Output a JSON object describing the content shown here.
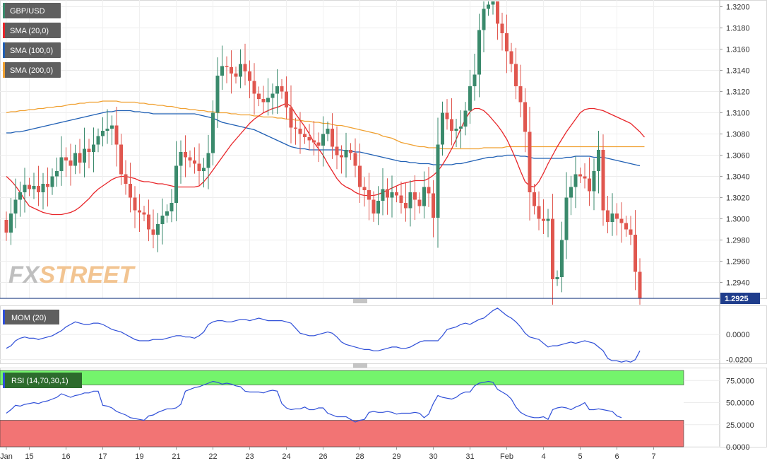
{
  "colors": {
    "up": "#3a8a6c",
    "down": "#e0574f",
    "sma20": "#e8262a",
    "sma100": "#1f5fb4",
    "sma200": "#f0a030",
    "mom": "#2f4fd8",
    "rsi": "#2f4fd8",
    "rsi_ob": "#74f46c",
    "rsi_os": "#f27474",
    "last_line": "#1a3c8c"
  },
  "watermark": {
    "fx": "FX",
    "street": "STREET"
  },
  "legend": [
    {
      "label": "GBP/USD",
      "swatch": "#3a8a6c"
    },
    {
      "label": "SMA (20,0)",
      "swatch": "#e8262a"
    },
    {
      "label": "SMA (100,0)",
      "swatch": "#1f5fb4"
    },
    {
      "label": "SMA (200,0)",
      "swatch": "#f0a030"
    }
  ],
  "mom_label": "MOM (20)",
  "rsi_label": "RSI (14,70,30,1)",
  "last_price": "1.2925",
  "chart_data": [
    {
      "type": "candlestick",
      "series_name": "GBP/USD",
      "ylim": [
        1.2925,
        1.3205
      ],
      "yticks": [
        "1.2940",
        "1.2960",
        "1.2980",
        "1.3000",
        "1.3020",
        "1.3040",
        "1.3060",
        "1.3080",
        "1.3100",
        "1.3120",
        "1.3140",
        "1.3160",
        "1.3180",
        "1.3200"
      ],
      "xticks": [
        {
          "label": "Jan",
          "idx": 0
        },
        {
          "label": "15",
          "idx": 5
        },
        {
          "label": "16",
          "idx": 13
        },
        {
          "label": "17",
          "idx": 21
        },
        {
          "label": "19",
          "idx": 29
        },
        {
          "label": "21",
          "idx": 37
        },
        {
          "label": "22",
          "idx": 45
        },
        {
          "label": "23",
          "idx": 53
        },
        {
          "label": "24",
          "idx": 61
        },
        {
          "label": "26",
          "idx": 69
        },
        {
          "label": "28",
          "idx": 77
        },
        {
          "label": "29",
          "idx": 85
        },
        {
          "label": "30",
          "idx": 93
        },
        {
          "label": "31",
          "idx": 101
        },
        {
          "label": "Feb",
          "idx": 109
        },
        {
          "label": "4",
          "idx": 117
        },
        {
          "label": "5",
          "idx": 125
        },
        {
          "label": "6",
          "idx": 133
        },
        {
          "label": "7",
          "idx": 141
        }
      ],
      "closes": [
        1.2987,
        1.3005,
        1.3018,
        1.3025,
        1.3032,
        1.3028,
        1.3031,
        1.3025,
        1.3033,
        1.303,
        1.304,
        1.3045,
        1.3058,
        1.3055,
        1.305,
        1.3062,
        1.3053,
        1.3066,
        1.3063,
        1.307,
        1.3078,
        1.3083,
        1.3085,
        1.3088,
        1.307,
        1.3042,
        1.3033,
        1.302,
        1.3008,
        1.3006,
        1.3004,
        1.299,
        1.2985,
        1.2995,
        1.3003,
        1.3007,
        1.3015,
        1.305,
        1.3063,
        1.3058,
        1.3055,
        1.3052,
        1.3045,
        1.3048,
        1.3062,
        1.31,
        1.3135,
        1.3144,
        1.3143,
        1.3137,
        1.3134,
        1.3146,
        1.3139,
        1.313,
        1.3118,
        1.3113,
        1.311,
        1.3114,
        1.3118,
        1.3125,
        1.312,
        1.3105,
        1.3086,
        1.3085,
        1.308,
        1.3077,
        1.3074,
        1.3072,
        1.3069,
        1.308,
        1.3085,
        1.3068,
        1.306,
        1.3058,
        1.3065,
        1.3062,
        1.305,
        1.303,
        1.3027,
        1.3018,
        1.3005,
        1.3017,
        1.3028,
        1.302,
        1.3025,
        1.3022,
        1.3015,
        1.301,
        1.3025,
        1.3018,
        1.3012,
        1.303,
        1.3024,
        1.3001,
        1.307,
        1.31,
        1.3094,
        1.3083,
        1.3085,
        1.3087,
        1.3102,
        1.3125,
        1.3136,
        1.3178,
        1.3198,
        1.3202,
        1.3205,
        1.3184,
        1.3175,
        1.3158,
        1.3146,
        1.3125,
        1.311,
        1.3082,
        1.3025,
        1.3012,
        1.3,
        1.2998,
        1.3,
        1.2943,
        1.2945,
        1.298,
        1.302,
        1.303,
        1.3042,
        1.304,
        1.3038,
        1.3026,
        1.3045,
        1.3065,
        1.3008,
        1.2997,
        1.3005,
        1.3,
        1.2996,
        1.299,
        1.2985,
        1.295,
        1.2925
      ],
      "sma20": [
        1.304,
        1.3036,
        1.3031,
        1.3025,
        1.3018,
        1.3012,
        1.301,
        1.3008,
        1.3006,
        1.3005,
        1.3004,
        1.3004,
        1.3004,
        1.3005,
        1.3006,
        1.3008,
        1.3011,
        1.3015,
        1.3019,
        1.3024,
        1.3028,
        1.3031,
        1.3034,
        1.3037,
        1.3039,
        1.304,
        1.304,
        1.3039,
        1.3038,
        1.3036,
        1.3035,
        1.3035,
        1.3034,
        1.3033,
        1.3033,
        1.3032,
        1.3031,
        1.303,
        1.303,
        1.303,
        1.303,
        1.303,
        1.3031,
        1.3035,
        1.304,
        1.3046,
        1.3052,
        1.3058,
        1.3064,
        1.307,
        1.3075,
        1.308,
        1.3085,
        1.309,
        1.3094,
        1.3097,
        1.31,
        1.3102,
        1.3104,
        1.3105,
        1.3107,
        1.3109,
        1.3106,
        1.3099,
        1.3093,
        1.3087,
        1.308,
        1.3072,
        1.3066,
        1.306,
        1.3052,
        1.3045,
        1.3038,
        1.3033,
        1.303,
        1.3028,
        1.3025,
        1.3023,
        1.3022,
        1.3022,
        1.3022,
        1.3023,
        1.3025,
        1.3027,
        1.3029,
        1.3031,
        1.3033,
        1.3034,
        1.3035,
        1.3036,
        1.3036,
        1.3036,
        1.3038,
        1.3041,
        1.3045,
        1.3051,
        1.3058,
        1.3066,
        1.3075,
        1.3085,
        1.3094,
        1.3101,
        1.3104,
        1.3104,
        1.3102,
        1.3098,
        1.3093,
        1.3088,
        1.3082,
        1.3075,
        1.3066,
        1.3056,
        1.3045,
        1.3035,
        1.3031,
        1.303,
        1.3035,
        1.3043,
        1.3052,
        1.306,
        1.3068,
        1.3075,
        1.3082,
        1.3088,
        1.3094,
        1.31,
        1.3103,
        1.3104,
        1.3104,
        1.3103,
        1.3102,
        1.31,
        1.3098,
        1.3096,
        1.3094,
        1.3092,
        1.309,
        1.3086,
        1.3082,
        1.3077
      ],
      "sma100": [
        1.3081,
        1.3081,
        1.3082,
        1.3082,
        1.3083,
        1.3084,
        1.3085,
        1.3086,
        1.3087,
        1.3088,
        1.3089,
        1.309,
        1.3091,
        1.3092,
        1.3093,
        1.3094,
        1.3095,
        1.3096,
        1.3097,
        1.3098,
        1.3099,
        1.31,
        1.3101,
        1.3101,
        1.3102,
        1.3102,
        1.3102,
        1.3102,
        1.3101,
        1.3101,
        1.31,
        1.31,
        1.3099,
        1.3099,
        1.3099,
        1.3099,
        1.3099,
        1.3099,
        1.3099,
        1.3099,
        1.3099,
        1.3099,
        1.3098,
        1.3097,
        1.3096,
        1.3095,
        1.3093,
        1.3091,
        1.309,
        1.3089,
        1.3088,
        1.3087,
        1.3086,
        1.3085,
        1.3084,
        1.3082,
        1.308,
        1.3078,
        1.3076,
        1.3074,
        1.3072,
        1.307,
        1.3068,
        1.3067,
        1.3066,
        1.3066,
        1.3065,
        1.3065,
        1.3065,
        1.3065,
        1.3065,
        1.3065,
        1.3065,
        1.3065,
        1.3064,
        1.3064,
        1.3063,
        1.3063,
        1.3062,
        1.3061,
        1.306,
        1.3059,
        1.3058,
        1.3057,
        1.3056,
        1.3055,
        1.3054,
        1.3054,
        1.3053,
        1.3053,
        1.3052,
        1.3052,
        1.3052,
        1.3051,
        1.3051,
        1.3051,
        1.3051,
        1.3051,
        1.3052,
        1.3052,
        1.3053,
        1.3054,
        1.3055,
        1.3056,
        1.3057,
        1.3058,
        1.3058,
        1.3059,
        1.3059,
        1.306,
        1.306,
        1.306,
        1.3059,
        1.3059,
        1.3058,
        1.3057,
        1.3057,
        1.3057,
        1.3057,
        1.3057,
        1.3057,
        1.3057,
        1.3058,
        1.3058,
        1.3059,
        1.3059,
        1.3059,
        1.3059,
        1.3058,
        1.3058,
        1.3058,
        1.3057,
        1.3056,
        1.3055,
        1.3054,
        1.3053,
        1.3052,
        1.3051,
        1.305
      ],
      "sma200": [
        1.31,
        1.3101,
        1.3101,
        1.3102,
        1.3102,
        1.3103,
        1.3103,
        1.3104,
        1.3104,
        1.3105,
        1.3105,
        1.3106,
        1.3106,
        1.3107,
        1.3108,
        1.3108,
        1.3109,
        1.3109,
        1.311,
        1.311,
        1.311,
        1.3111,
        1.3111,
        1.3111,
        1.3111,
        1.311,
        1.311,
        1.311,
        1.311,
        1.3109,
        1.3109,
        1.3108,
        1.3108,
        1.3107,
        1.3107,
        1.3106,
        1.3106,
        1.3105,
        1.3104,
        1.3104,
        1.3103,
        1.3103,
        1.3102,
        1.3102,
        1.3101,
        1.3101,
        1.31,
        1.31,
        1.31,
        1.3099,
        1.3099,
        1.3098,
        1.3098,
        1.3098,
        1.3097,
        1.3097,
        1.3096,
        1.3096,
        1.3096,
        1.3095,
        1.3095,
        1.3094,
        1.3094,
        1.3093,
        1.3093,
        1.3092,
        1.3092,
        1.3091,
        1.3091,
        1.309,
        1.309,
        1.3089,
        1.3088,
        1.3088,
        1.3087,
        1.3086,
        1.3085,
        1.3084,
        1.3083,
        1.3082,
        1.3081,
        1.308,
        1.3078,
        1.3077,
        1.3076,
        1.3074,
        1.3072,
        1.3071,
        1.307,
        1.3069,
        1.3068,
        1.3068,
        1.3067,
        1.3067,
        1.3067,
        1.3066,
        1.3066,
        1.3066,
        1.3066,
        1.3066,
        1.3066,
        1.3066,
        1.3066,
        1.3066,
        1.3067,
        1.3067,
        1.3067,
        1.3067,
        1.3067,
        1.3068,
        1.3068,
        1.3068,
        1.3068,
        1.3068,
        1.3068,
        1.3068,
        1.3068,
        1.3068,
        1.3068,
        1.3068,
        1.3068,
        1.3068,
        1.3068,
        1.3068,
        1.3068,
        1.3068,
        1.3068,
        1.3068,
        1.3068,
        1.3068,
        1.3068,
        1.3068,
        1.3068,
        1.3068,
        1.3068,
        1.3068,
        1.3068,
        1.3068,
        1.3068,
        1.3068
      ],
      "last_price": 1.2925
    },
    {
      "type": "line",
      "series_name": "MOM (20)",
      "ylim": [
        -0.023,
        0.022
      ],
      "yticks": [
        "0.0000",
        "-0.0200"
      ],
      "values": [
        -0.011,
        -0.009,
        -0.005,
        -0.003,
        -0.002,
        -0.003,
        -0.003,
        -0.004,
        -0.003,
        -0.002,
        -0.001,
        0.001,
        0.003,
        0.006,
        0.008,
        0.01,
        0.009,
        0.008,
        0.008,
        0.009,
        0.009,
        0.008,
        0.006,
        0.004,
        0.003,
        0.002,
        0.0,
        -0.002,
        -0.004,
        -0.005,
        -0.005,
        -0.005,
        -0.004,
        -0.004,
        -0.004,
        -0.003,
        -0.002,
        -0.001,
        -0.001,
        -0.002,
        -0.002,
        -0.003,
        -0.001,
        0.002,
        0.008,
        0.01,
        0.011,
        0.011,
        0.01,
        0.01,
        0.011,
        0.012,
        0.012,
        0.011,
        0.012,
        0.013,
        0.012,
        0.011,
        0.011,
        0.011,
        0.011,
        0.01,
        0.009,
        0.005,
        0.001,
        0.0,
        -0.001,
        -0.001,
        0.0,
        0.001,
        0.002,
        0.001,
        -0.002,
        -0.006,
        -0.008,
        -0.009,
        -0.01,
        -0.011,
        -0.012,
        -0.012,
        -0.013,
        -0.013,
        -0.012,
        -0.011,
        -0.01,
        -0.01,
        -0.011,
        -0.011,
        -0.01,
        -0.008,
        -0.006,
        -0.005,
        -0.005,
        -0.005,
        -0.005,
        -0.001,
        0.004,
        0.005,
        0.006,
        0.008,
        0.009,
        0.008,
        0.01,
        0.012,
        0.013,
        0.016,
        0.019,
        0.021,
        0.018,
        0.015,
        0.013,
        0.01,
        0.006,
        0.001,
        -0.002,
        -0.003,
        -0.004,
        -0.007,
        -0.01,
        -0.009,
        -0.009,
        -0.008,
        -0.007,
        -0.006,
        -0.007,
        -0.006,
        -0.005,
        -0.006,
        -0.007,
        -0.01,
        -0.013,
        -0.019,
        -0.021,
        -0.021,
        -0.022,
        -0.021,
        -0.022,
        -0.02,
        -0.013
      ]
    },
    {
      "type": "line",
      "series_name": "RSI (14,70,30,1)",
      "ylim": [
        0,
        88
      ],
      "yticks": [
        "0.0000",
        "25.0000",
        "50.0000",
        "75.0000"
      ],
      "overbought": 70,
      "oversold": 30,
      "values": [
        38,
        42,
        47,
        46,
        48,
        49,
        50,
        49,
        51,
        52,
        54,
        56,
        60,
        58,
        56,
        58,
        59,
        61,
        61,
        63,
        63,
        47,
        46,
        44,
        40,
        38,
        36,
        33,
        32,
        31,
        30,
        35,
        36,
        39,
        41,
        43,
        43,
        44,
        48,
        63,
        65,
        67,
        68,
        70,
        72,
        74,
        73,
        71,
        72,
        71,
        69,
        68,
        63,
        62,
        62,
        62,
        61,
        63,
        64,
        63,
        49,
        44,
        42,
        43,
        43,
        45,
        42,
        42,
        44,
        44,
        38,
        36,
        34,
        34,
        34,
        31,
        28,
        30,
        31,
        39,
        40,
        39,
        39,
        40,
        39,
        37,
        38,
        38,
        38,
        39,
        38,
        33,
        37,
        49,
        58,
        56,
        55,
        54,
        56,
        60,
        62,
        62,
        69,
        72,
        73,
        74,
        73,
        65,
        62,
        59,
        54,
        45,
        39,
        36,
        34,
        33,
        33,
        34,
        31,
        42,
        44,
        45,
        44,
        42,
        45,
        47,
        50,
        42,
        42,
        43,
        42,
        41,
        40,
        35,
        33
      ]
    }
  ]
}
